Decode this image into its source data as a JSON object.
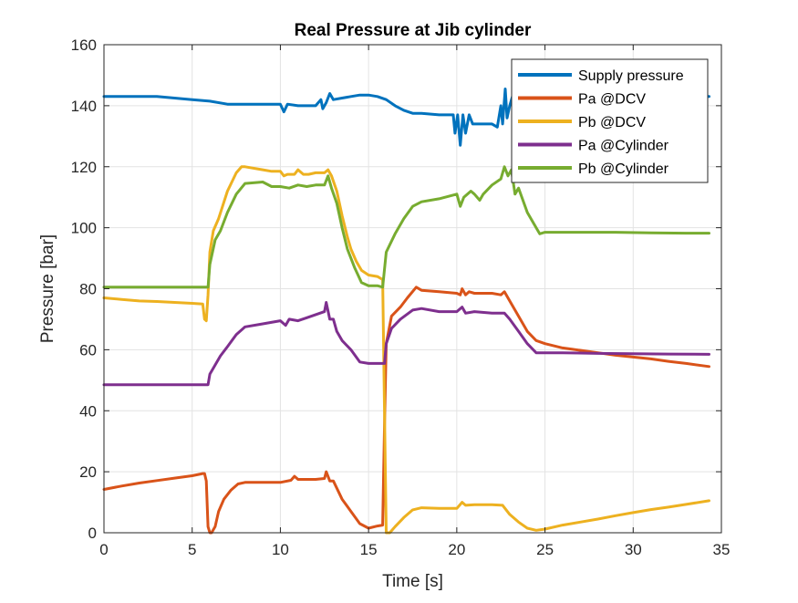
{
  "chart_data": {
    "type": "line",
    "title": "Real Pressure at Jib cylinder",
    "xlabel": "Time [s]",
    "ylabel": "Pressure [bar]",
    "xlim": [
      0,
      35
    ],
    "ylim": [
      0,
      160
    ],
    "xticks": [
      0,
      5,
      10,
      15,
      20,
      25,
      30,
      35
    ],
    "yticks": [
      0,
      20,
      40,
      60,
      80,
      100,
      120,
      140,
      160
    ],
    "xtick_labels": [
      "0",
      "5",
      "10",
      "15",
      "20",
      "25",
      "30",
      "35"
    ],
    "ytick_labels": [
      "0",
      "20",
      "40",
      "60",
      "80",
      "100",
      "120",
      "140",
      "160"
    ],
    "grid": true,
    "legend_position": "top-right",
    "series": [
      {
        "name": "Supply pressure",
        "color": "#0072BD",
        "points": [
          [
            0,
            143
          ],
          [
            1,
            143
          ],
          [
            2,
            143
          ],
          [
            3,
            143
          ],
          [
            4,
            142.5
          ],
          [
            5,
            142
          ],
          [
            6,
            141.5
          ],
          [
            7,
            140.5
          ],
          [
            8,
            140.5
          ],
          [
            9,
            140.5
          ],
          [
            10,
            140.5
          ],
          [
            10.2,
            138
          ],
          [
            10.4,
            140.5
          ],
          [
            11,
            140
          ],
          [
            11.6,
            140
          ],
          [
            12,
            140
          ],
          [
            12.3,
            142
          ],
          [
            12.4,
            139
          ],
          [
            12.6,
            141
          ],
          [
            12.8,
            144
          ],
          [
            13,
            142
          ],
          [
            13.5,
            142.5
          ],
          [
            14,
            143
          ],
          [
            14.5,
            143.5
          ],
          [
            15,
            143.5
          ],
          [
            15.5,
            143
          ],
          [
            16,
            142
          ],
          [
            16.5,
            140
          ],
          [
            17,
            138.5
          ],
          [
            17.5,
            137.5
          ],
          [
            18,
            137.5
          ],
          [
            19,
            137
          ],
          [
            19.8,
            137
          ],
          [
            19.9,
            131
          ],
          [
            20.05,
            137
          ],
          [
            20.2,
            127
          ],
          [
            20.35,
            137
          ],
          [
            20.5,
            131
          ],
          [
            20.7,
            137
          ],
          [
            20.9,
            134
          ],
          [
            21.2,
            134
          ],
          [
            21.6,
            134
          ],
          [
            22,
            134
          ],
          [
            22.3,
            133
          ],
          [
            22.5,
            140
          ],
          [
            22.6,
            134
          ],
          [
            22.75,
            145.5
          ],
          [
            22.85,
            136
          ],
          [
            23,
            140
          ],
          [
            23.2,
            144
          ],
          [
            24,
            144
          ],
          [
            25,
            143.5
          ],
          [
            26,
            143.5
          ],
          [
            27,
            143.5
          ],
          [
            28,
            143.5
          ],
          [
            29,
            143.5
          ],
          [
            30,
            143
          ],
          [
            31,
            143
          ],
          [
            32,
            143
          ],
          [
            33,
            143
          ],
          [
            34.3,
            143
          ]
        ]
      },
      {
        "name": "Pa @DCV",
        "color": "#D95319",
        "points": [
          [
            0,
            14.2
          ],
          [
            1,
            15.3
          ],
          [
            2,
            16.3
          ],
          [
            3,
            17.1
          ],
          [
            4,
            17.9
          ],
          [
            5,
            18.7
          ],
          [
            5.6,
            19.4
          ],
          [
            5.7,
            19.4
          ],
          [
            5.8,
            17
          ],
          [
            5.9,
            2
          ],
          [
            6,
            0
          ],
          [
            6.1,
            0
          ],
          [
            6.3,
            2
          ],
          [
            6.5,
            7
          ],
          [
            6.8,
            11
          ],
          [
            7.2,
            14
          ],
          [
            7.6,
            16
          ],
          [
            8,
            16.5
          ],
          [
            9,
            16.5
          ],
          [
            10,
            16.5
          ],
          [
            10.6,
            17.2
          ],
          [
            10.8,
            18.5
          ],
          [
            11,
            17.5
          ],
          [
            11.6,
            17.5
          ],
          [
            12,
            17.5
          ],
          [
            12.5,
            17.8
          ],
          [
            12.6,
            20
          ],
          [
            12.8,
            17
          ],
          [
            13,
            17
          ],
          [
            13.5,
            11
          ],
          [
            14,
            7
          ],
          [
            14.5,
            3
          ],
          [
            15,
            1.5
          ],
          [
            15.5,
            2.2
          ],
          [
            15.8,
            2.5
          ],
          [
            15.9,
            35
          ],
          [
            16,
            62
          ],
          [
            16.3,
            71
          ],
          [
            16.8,
            74
          ],
          [
            17.2,
            77
          ],
          [
            17.7,
            80.5
          ],
          [
            18,
            79.5
          ],
          [
            19,
            79
          ],
          [
            20,
            78.5
          ],
          [
            20.2,
            78
          ],
          [
            20.3,
            80
          ],
          [
            20.5,
            78
          ],
          [
            20.7,
            79
          ],
          [
            21,
            78.5
          ],
          [
            22,
            78.5
          ],
          [
            22.5,
            78
          ],
          [
            22.7,
            79
          ],
          [
            23,
            76
          ],
          [
            23.5,
            71
          ],
          [
            24,
            66
          ],
          [
            24.5,
            63
          ],
          [
            25,
            62
          ],
          [
            26,
            60.6
          ],
          [
            27,
            59.8
          ],
          [
            28,
            59
          ],
          [
            29,
            58.2
          ],
          [
            30,
            57.6
          ],
          [
            31,
            57
          ],
          [
            32,
            56.2
          ],
          [
            33,
            55.5
          ],
          [
            34.3,
            54.5
          ]
        ]
      },
      {
        "name": "Pb @DCV",
        "color": "#EDB120",
        "points": [
          [
            0,
            77
          ],
          [
            1,
            76.5
          ],
          [
            2,
            76
          ],
          [
            3,
            75.8
          ],
          [
            4,
            75.5
          ],
          [
            5,
            75.2
          ],
          [
            5.6,
            75
          ],
          [
            5.7,
            70
          ],
          [
            5.8,
            69.5
          ],
          [
            5.9,
            78
          ],
          [
            6,
            92
          ],
          [
            6.2,
            99
          ],
          [
            6.5,
            103
          ],
          [
            7,
            112
          ],
          [
            7.5,
            118
          ],
          [
            7.8,
            120
          ],
          [
            8,
            120
          ],
          [
            9,
            119
          ],
          [
            9.5,
            118.5
          ],
          [
            10,
            118.5
          ],
          [
            10.2,
            117
          ],
          [
            10.4,
            117.5
          ],
          [
            10.8,
            117.5
          ],
          [
            11,
            119
          ],
          [
            11.3,
            117.5
          ],
          [
            11.6,
            117.5
          ],
          [
            12,
            118
          ],
          [
            12.5,
            118
          ],
          [
            12.7,
            119
          ],
          [
            12.9,
            117
          ],
          [
            13.2,
            112
          ],
          [
            13.5,
            104
          ],
          [
            13.8,
            97
          ],
          [
            14,
            93
          ],
          [
            14.3,
            89
          ],
          [
            14.6,
            86
          ],
          [
            15,
            84.5
          ],
          [
            15.5,
            84
          ],
          [
            15.8,
            83
          ],
          [
            15.9,
            40
          ],
          [
            16,
            0
          ],
          [
            16.2,
            0
          ],
          [
            16.5,
            2
          ],
          [
            17,
            5
          ],
          [
            17.5,
            7.5
          ],
          [
            18,
            8.2
          ],
          [
            19,
            8
          ],
          [
            20,
            8
          ],
          [
            20.3,
            10
          ],
          [
            20.5,
            9
          ],
          [
            21,
            9.2
          ],
          [
            22,
            9.2
          ],
          [
            22.6,
            9
          ],
          [
            23,
            6
          ],
          [
            23.5,
            3.5
          ],
          [
            24,
            1.5
          ],
          [
            24.5,
            0.8
          ],
          [
            25,
            1.2
          ],
          [
            26,
            2.5
          ],
          [
            27,
            3.5
          ],
          [
            28,
            4.5
          ],
          [
            29,
            5.6
          ],
          [
            30,
            6.6
          ],
          [
            31,
            7.6
          ],
          [
            32,
            8.4
          ],
          [
            33,
            9.3
          ],
          [
            34.3,
            10.5
          ]
        ]
      },
      {
        "name": "Pa @Cylinder",
        "color": "#7E2F8E",
        "points": [
          [
            0,
            48.5
          ],
          [
            1,
            48.5
          ],
          [
            2,
            48.5
          ],
          [
            3,
            48.5
          ],
          [
            4,
            48.5
          ],
          [
            5,
            48.5
          ],
          [
            5.9,
            48.5
          ],
          [
            6,
            52
          ],
          [
            6.3,
            55
          ],
          [
            6.6,
            58
          ],
          [
            7,
            61
          ],
          [
            7.5,
            65
          ],
          [
            8,
            67.5
          ],
          [
            9,
            68.5
          ],
          [
            10,
            69.5
          ],
          [
            10.3,
            68
          ],
          [
            10.5,
            70
          ],
          [
            11,
            69.5
          ],
          [
            11.5,
            70.5
          ],
          [
            12,
            71.5
          ],
          [
            12.5,
            72.5
          ],
          [
            12.6,
            75.5
          ],
          [
            12.8,
            70
          ],
          [
            13,
            70
          ],
          [
            13.2,
            66
          ],
          [
            13.5,
            63
          ],
          [
            14,
            60
          ],
          [
            14.5,
            56
          ],
          [
            15,
            55.5
          ],
          [
            15.5,
            55.5
          ],
          [
            15.9,
            55.5
          ],
          [
            16,
            62
          ],
          [
            16.3,
            67
          ],
          [
            16.8,
            70
          ],
          [
            17.5,
            73
          ],
          [
            18,
            73.5
          ],
          [
            19,
            72.5
          ],
          [
            20,
            72.5
          ],
          [
            20.3,
            74
          ],
          [
            20.5,
            72
          ],
          [
            21,
            72.5
          ],
          [
            22,
            72
          ],
          [
            22.7,
            72
          ],
          [
            23,
            70
          ],
          [
            23.5,
            66
          ],
          [
            24,
            62
          ],
          [
            24.5,
            59
          ],
          [
            25,
            59
          ],
          [
            26,
            59
          ],
          [
            28,
            58.8
          ],
          [
            30,
            58.7
          ],
          [
            32,
            58.6
          ],
          [
            34.3,
            58.5
          ]
        ]
      },
      {
        "name": "Pb @Cylinder",
        "color": "#77AC30",
        "points": [
          [
            0,
            80.5
          ],
          [
            1,
            80.5
          ],
          [
            2,
            80.5
          ],
          [
            3,
            80.5
          ],
          [
            4,
            80.5
          ],
          [
            5,
            80.5
          ],
          [
            5.9,
            80.5
          ],
          [
            6,
            88
          ],
          [
            6.3,
            96
          ],
          [
            6.6,
            99
          ],
          [
            7,
            105
          ],
          [
            7.5,
            111
          ],
          [
            8,
            114.5
          ],
          [
            9,
            115
          ],
          [
            9.5,
            113.5
          ],
          [
            10,
            113.5
          ],
          [
            10.5,
            113
          ],
          [
            11,
            114
          ],
          [
            11.5,
            113.5
          ],
          [
            12,
            114
          ],
          [
            12.5,
            114
          ],
          [
            12.7,
            117
          ],
          [
            12.9,
            113
          ],
          [
            13.2,
            108
          ],
          [
            13.5,
            100
          ],
          [
            13.8,
            93
          ],
          [
            14.2,
            87
          ],
          [
            14.6,
            82
          ],
          [
            15,
            81
          ],
          [
            15.5,
            81
          ],
          [
            15.8,
            80.5
          ],
          [
            16,
            92
          ],
          [
            16.5,
            98
          ],
          [
            17,
            103
          ],
          [
            17.5,
            107
          ],
          [
            18,
            108.5
          ],
          [
            19,
            109.5
          ],
          [
            20,
            111
          ],
          [
            20.2,
            107
          ],
          [
            20.4,
            110
          ],
          [
            20.8,
            112
          ],
          [
            21,
            111
          ],
          [
            21.3,
            109
          ],
          [
            21.5,
            111
          ],
          [
            22,
            114
          ],
          [
            22.5,
            116
          ],
          [
            22.7,
            120
          ],
          [
            22.9,
            117
          ],
          [
            23.1,
            119
          ],
          [
            23.3,
            111
          ],
          [
            23.5,
            113
          ],
          [
            24,
            105
          ],
          [
            24.5,
            100
          ],
          [
            24.7,
            98
          ],
          [
            25,
            98.5
          ],
          [
            27,
            98.5
          ],
          [
            29,
            98.5
          ],
          [
            31,
            98.3
          ],
          [
            33,
            98.2
          ],
          [
            34.3,
            98.2
          ]
        ]
      }
    ]
  }
}
